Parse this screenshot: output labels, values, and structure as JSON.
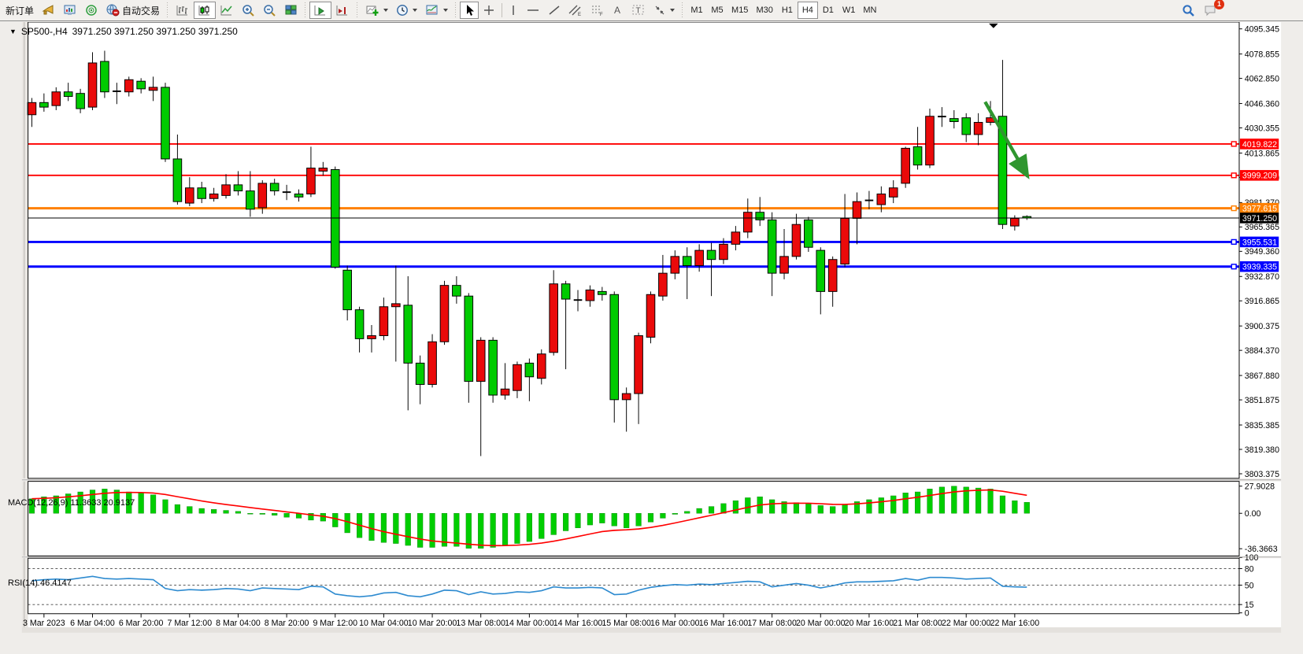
{
  "toolbar": {
    "new_order_label": "新订单",
    "autotrade_label": "自动交易",
    "timeframes": [
      "M1",
      "M5",
      "M15",
      "M30",
      "H1",
      "H4",
      "D1",
      "W1",
      "MN"
    ],
    "active_timeframe": "H4",
    "notification_count": "1"
  },
  "chart": {
    "dropdown_arrow": "▼",
    "title": "SP500-,H4",
    "ohlc_text": "3971.250 3971.250 3971.250 3971.250"
  },
  "macd_label": {
    "name": "MACD(12,26,9)",
    "value": "11.3633",
    "signal": "20.9137"
  },
  "rsi_label": {
    "name": "RSI(14)",
    "value": "46.4147"
  },
  "chart_data": {
    "type": "candlestick",
    "symbol": "SP500-",
    "timeframe": "H4",
    "colors": {
      "up": "#ea0a0a",
      "down": "#00cb00",
      "doji": "#000000",
      "macd_hist": "#00ce00",
      "macd_signal": "#ff0000",
      "rsi_line": "#2e8bd0",
      "arrow": "#2f962f"
    },
    "y_axis_ticks": [
      "4095.345",
      "4078.855",
      "4062.850",
      "4046.360",
      "4030.355",
      "4013.865",
      "3997.860",
      "3981.370",
      "3965.365",
      "3949.360",
      "3932.870",
      "3916.865",
      "3900.375",
      "3884.370",
      "3867.880",
      "3851.875",
      "3835.385",
      "3819.380",
      "3803.375"
    ],
    "price_lines": [
      {
        "price": 4019.822,
        "label": "4019.822",
        "color": "#ff0000",
        "width": 2
      },
      {
        "price": 3999.209,
        "label": "3999.209",
        "color": "#ff0000",
        "width": 2
      },
      {
        "price": 3977.615,
        "label": "3977.615",
        "color": "#ff8000",
        "width": 3
      },
      {
        "price": 3955.531,
        "label": "3955.531",
        "color": "#0000ff",
        "width": 3
      },
      {
        "price": 3939.335,
        "label": "3939.335",
        "color": "#0000ff",
        "width": 3
      }
    ],
    "current_price": {
      "price": 3971.25,
      "label": "3971.250",
      "color": "#000000"
    },
    "time_labels": [
      "3 Mar 2023",
      "6 Mar 04:00",
      "6 Mar 20:00",
      "7 Mar 12:00",
      "8 Mar 04:00",
      "8 Mar 20:00",
      "9 Mar 12:00",
      "10 Mar 04:00",
      "10 Mar 20:00",
      "13 Mar 08:00",
      "14 Mar 00:00",
      "14 Mar 16:00",
      "15 Mar 08:00",
      "16 Mar 00:00",
      "16 Mar 16:00",
      "17 Mar 08:00",
      "20 Mar 00:00",
      "20 Mar 16:00",
      "21 Mar 08:00",
      "22 Mar 00:00",
      "22 Mar 16:00"
    ],
    "candles_ohlc": [
      [
        4039,
        4050,
        4031,
        4047
      ],
      [
        4047,
        4053,
        4041,
        4044
      ],
      [
        4045,
        4057,
        4042,
        4054
      ],
      [
        4054,
        4060,
        4048,
        4051
      ],
      [
        4053,
        4056,
        4040,
        4043
      ],
      [
        4044,
        4080,
        4042,
        4073
      ],
      [
        4074,
        4081,
        4050,
        4054
      ],
      [
        4054,
        4060,
        4046,
        4054.4
      ],
      [
        4054,
        4064,
        4051,
        4062
      ],
      [
        4061,
        4063,
        4053,
        4056
      ],
      [
        4055,
        4064,
        4048,
        4057
      ],
      [
        4057,
        4060,
        4008,
        4010
      ],
      [
        4010,
        4026,
        3980,
        3982
      ],
      [
        3981,
        3998,
        3979,
        3991
      ],
      [
        3991,
        3995,
        3981,
        3984
      ],
      [
        3984,
        3991,
        3982,
        3987
      ],
      [
        3986,
        4000,
        3984,
        3993
      ],
      [
        3993,
        4002,
        3986,
        3989
      ],
      [
        3989,
        4002,
        3972,
        3977
      ],
      [
        3978,
        3996,
        3974,
        3994
      ],
      [
        3994,
        3997,
        3986,
        3989
      ],
      [
        3988,
        3993,
        3983,
        3988.2
      ],
      [
        3987,
        3990,
        3982,
        3985
      ],
      [
        3987,
        4018,
        3985,
        4004
      ],
      [
        4002,
        4008,
        3999,
        4004
      ],
      [
        4003,
        4005,
        3938,
        3939
      ],
      [
        3937,
        3940,
        3904,
        3911
      ],
      [
        3911,
        3913,
        3883,
        3892
      ],
      [
        3892,
        3901,
        3883,
        3894
      ],
      [
        3894,
        3919,
        3891,
        3913
      ],
      [
        3913,
        3940,
        3877,
        3915
      ],
      [
        3914,
        3933,
        3845,
        3876
      ],
      [
        3876,
        3881,
        3849,
        3862
      ],
      [
        3862,
        3895,
        3860,
        3890
      ],
      [
        3890,
        3930,
        3888,
        3927
      ],
      [
        3927,
        3933,
        3915,
        3920
      ],
      [
        3920,
        3922,
        3850,
        3864
      ],
      [
        3864,
        3893,
        3815,
        3891
      ],
      [
        3891,
        3893,
        3850,
        3855
      ],
      [
        3855,
        3876,
        3852,
        3859
      ],
      [
        3858,
        3877,
        3853,
        3875
      ],
      [
        3876,
        3879,
        3851,
        3867
      ],
      [
        3866,
        3885,
        3862,
        3882
      ],
      [
        3883,
        3937,
        3881,
        3928
      ],
      [
        3928,
        3930,
        3872,
        3918
      ],
      [
        3917,
        3924,
        3910,
        3917.4
      ],
      [
        3917,
        3927,
        3913,
        3924
      ],
      [
        3923,
        3926,
        3917,
        3921
      ],
      [
        3921,
        3923,
        3837,
        3852
      ],
      [
        3852,
        3860,
        3831,
        3856
      ],
      [
        3856,
        3896,
        3836,
        3894
      ],
      [
        3893,
        3923,
        3889,
        3921
      ],
      [
        3920,
        3947,
        3917,
        3935
      ],
      [
        3935,
        3950,
        3931,
        3946
      ],
      [
        3946,
        3952,
        3918,
        3940
      ],
      [
        3940,
        3954,
        3936,
        3950
      ],
      [
        3950,
        3955,
        3920,
        3944
      ],
      [
        3944,
        3958,
        3941,
        3954
      ],
      [
        3954,
        3966,
        3950,
        3962
      ],
      [
        3962,
        3984,
        3958,
        3975
      ],
      [
        3975,
        3985,
        3966,
        3970
      ],
      [
        3970,
        3975,
        3920,
        3935
      ],
      [
        3935,
        3964,
        3931,
        3946
      ],
      [
        3946,
        3974,
        3944,
        3967
      ],
      [
        3970,
        3972,
        3949,
        3952
      ],
      [
        3950,
        3952,
        3908,
        3923
      ],
      [
        3923,
        3946,
        3913,
        3944
      ],
      [
        3941,
        3987,
        3939,
        3971
      ],
      [
        3971,
        3988,
        3954,
        3982
      ],
      [
        3982.5,
        3989,
        3977,
        3982.8
      ],
      [
        3980,
        3992,
        3975,
        3987
      ],
      [
        3985,
        3996,
        3981,
        3991
      ],
      [
        3994,
        4018,
        3991,
        4017
      ],
      [
        4018,
        4031,
        4003,
        4006
      ],
      [
        4006,
        4043,
        4004,
        4038
      ],
      [
        4037.5,
        4044,
        4031,
        4037.8
      ],
      [
        4036.5,
        4042,
        4030,
        4034.5
      ],
      [
        4037,
        4040,
        4021,
        4026
      ],
      [
        4026,
        4040,
        4019,
        4034
      ],
      [
        4034,
        4048,
        4032,
        4037
      ],
      [
        4038,
        4075,
        3964,
        3967
      ],
      [
        3966,
        3973,
        3963,
        3971
      ],
      [
        3972.2,
        3973,
        3970,
        3971.25
      ]
    ],
    "macd": {
      "axis_labels": [
        {
          "text": "27.9028",
          "v": 27.9028
        },
        {
          "text": "0.00",
          "v": 0
        },
        {
          "text": "-36.3663",
          "v": -36.3663
        }
      ],
      "histogram": [
        15,
        17,
        18,
        20,
        22,
        24,
        25,
        24,
        22,
        21,
        19,
        14,
        9,
        7,
        5,
        4,
        3,
        2,
        0,
        -1,
        -2,
        -4,
        -5,
        -7,
        -8,
        -14,
        -20,
        -25,
        -28,
        -30,
        -31,
        -33,
        -35,
        -35,
        -34,
        -34,
        -36,
        -36,
        -35,
        -33,
        -31,
        -29,
        -26,
        -22,
        -18,
        -15,
        -12,
        -10,
        -13,
        -15,
        -13,
        -9,
        -5,
        -1,
        2,
        5,
        7,
        10,
        13,
        16,
        17,
        14,
        12,
        11,
        10,
        8,
        7,
        9,
        12,
        14,
        16,
        18,
        21,
        22,
        25,
        27,
        27.9,
        27,
        26,
        25,
        18,
        13,
        11.36
      ]
    },
    "rsi": {
      "levels": [
        80,
        50,
        15
      ],
      "axis_labels": [
        {
          "text": "100",
          "v": 100
        },
        {
          "text": "80",
          "v": 80
        },
        {
          "text": "50",
          "v": 50
        },
        {
          "text": "15",
          "v": 15
        },
        {
          "text": "0",
          "v": 0
        }
      ],
      "values": [
        58,
        60,
        61,
        60,
        63,
        66,
        62,
        61,
        62,
        61,
        60,
        44,
        40,
        42,
        41,
        42,
        44,
        43,
        40,
        45,
        44,
        43,
        42,
        48,
        47,
        34,
        31,
        29,
        31,
        36,
        37,
        31,
        29,
        34,
        41,
        40,
        33,
        38,
        34,
        35,
        38,
        37,
        40,
        47,
        45,
        45,
        46,
        45,
        33,
        34,
        41,
        46,
        49,
        51,
        50,
        52,
        51,
        53,
        55,
        57,
        56,
        47,
        50,
        53,
        50,
        45,
        49,
        54,
        56,
        56,
        57,
        58,
        62,
        59,
        64,
        64,
        63,
        61,
        62,
        63,
        48,
        47,
        46.41
      ]
    },
    "annotation_arrow": {
      "from": [
        1266,
        133
      ],
      "to": [
        1322,
        231
      ]
    }
  }
}
